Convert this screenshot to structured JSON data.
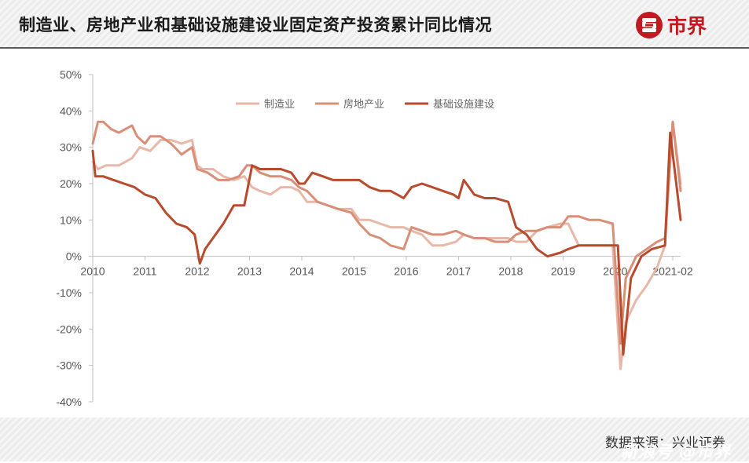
{
  "header": {
    "title": "制造业、房地产业和基础设施建设业固定资产投资累计同比情况",
    "brand_name": "市界"
  },
  "footer": {
    "source": "数据来源：兴业证券",
    "watermark": "新浪号 @市界"
  },
  "colors": {
    "manufacturing": "#e9b7a7",
    "real_estate": "#d98e77",
    "infrastructure": "#b84b2d",
    "brand": "#c2181f"
  },
  "chart_data": {
    "type": "line",
    "title": "制造业、房地产业和基础设施建设业固定资产投资累计同比情况",
    "xlabel": "",
    "ylabel": "",
    "ylim": [
      -40,
      50
    ],
    "yticks": [
      50,
      40,
      30,
      20,
      10,
      0,
      -10,
      -20,
      -30,
      -40
    ],
    "ytick_labels": [
      "50%",
      "40%",
      "30%",
      "20%",
      "10%",
      "0%",
      "-10%",
      "-20%",
      "-30%",
      "-40%"
    ],
    "xlim": [
      2010,
      2021.25
    ],
    "xticks": [
      2010,
      2011,
      2012,
      2013,
      2014,
      2015,
      2016,
      2017,
      2018,
      2019,
      2020,
      2021.1
    ],
    "xtick_labels": [
      "2010",
      "2011",
      "2012",
      "2013",
      "2014",
      "2015",
      "2016",
      "2017",
      "2018",
      "2019",
      "2020",
      "2021-02"
    ],
    "grid": false,
    "legend_position": "top",
    "series": [
      {
        "name": "制造业",
        "color": "#e9b7a7",
        "x": [
          2010,
          2010.1,
          2010.25,
          2010.5,
          2010.75,
          2010.9,
          2011.1,
          2011.3,
          2011.5,
          2011.7,
          2011.9,
          2012.0,
          2012.1,
          2012.3,
          2012.5,
          2012.7,
          2012.9,
          2013.05,
          2013.2,
          2013.4,
          2013.6,
          2013.8,
          2013.95,
          2014.1,
          2014.3,
          2014.5,
          2014.7,
          2014.95,
          2015.1,
          2015.3,
          2015.5,
          2015.7,
          2015.95,
          2016.1,
          2016.3,
          2016.5,
          2016.7,
          2016.95,
          2017.1,
          2017.3,
          2017.5,
          2017.7,
          2017.95,
          2018.1,
          2018.3,
          2018.5,
          2018.7,
          2018.95,
          2019.1,
          2019.3,
          2019.5,
          2019.7,
          2019.95,
          2020.1,
          2020.2,
          2020.4,
          2020.6,
          2020.8,
          2020.95,
          2021.1,
          2021.25
        ],
        "values": [
          26,
          24,
          25,
          25,
          27,
          30,
          29,
          32,
          32,
          31,
          32,
          25,
          24,
          24,
          22,
          21,
          22,
          19,
          18,
          17,
          19,
          19,
          18,
          15,
          15,
          14,
          13,
          13,
          10,
          10,
          9,
          8,
          8,
          7,
          6,
          3,
          3,
          4,
          6,
          5,
          5,
          5,
          5,
          4,
          4,
          7,
          8,
          9,
          9,
          3,
          3,
          3,
          3,
          -31,
          -18,
          -12,
          -8,
          -3,
          3,
          37,
          20
        ]
      },
      {
        "name": "房地产业",
        "color": "#d98e77",
        "x": [
          2010,
          2010.1,
          2010.2,
          2010.35,
          2010.5,
          2010.75,
          2010.85,
          2011.0,
          2011.1,
          2011.3,
          2011.5,
          2011.7,
          2011.9,
          2012.0,
          2012.2,
          2012.4,
          2012.6,
          2012.8,
          2012.95,
          2013.05,
          2013.2,
          2013.4,
          2013.6,
          2013.8,
          2013.95,
          2014.1,
          2014.3,
          2014.5,
          2014.7,
          2014.95,
          2015.1,
          2015.3,
          2015.5,
          2015.7,
          2015.95,
          2016.1,
          2016.3,
          2016.5,
          2016.7,
          2016.95,
          2017.1,
          2017.3,
          2017.5,
          2017.7,
          2017.95,
          2018.1,
          2018.3,
          2018.5,
          2018.7,
          2018.95,
          2019.1,
          2019.3,
          2019.5,
          2019.7,
          2019.95,
          2020.1,
          2020.2,
          2020.4,
          2020.6,
          2020.8,
          2020.95,
          2021.1,
          2021.25
        ],
        "values": [
          31,
          37,
          37,
          35,
          34,
          36,
          33,
          31,
          33,
          33,
          31,
          28,
          30,
          24,
          23,
          21,
          21,
          22,
          25,
          25,
          23,
          22,
          22,
          21,
          19,
          18,
          15,
          14,
          13,
          12,
          9,
          6,
          5,
          3,
          2,
          8,
          7,
          6,
          6,
          7,
          6,
          5,
          5,
          4,
          4,
          6,
          7,
          7,
          8,
          8,
          11,
          11,
          10,
          10,
          9,
          -24,
          -6,
          0,
          2,
          4,
          5,
          37,
          18
        ]
      },
      {
        "name": "基础设施建设",
        "color": "#b84b2d",
        "x": [
          2010,
          2010.05,
          2010.2,
          2010.4,
          2010.6,
          2010.8,
          2011.0,
          2011.2,
          2011.4,
          2011.6,
          2011.8,
          2011.95,
          2012.05,
          2012.15,
          2012.3,
          2012.5,
          2012.7,
          2012.9,
          2013.05,
          2013.2,
          2013.4,
          2013.6,
          2013.8,
          2013.95,
          2014.05,
          2014.2,
          2014.4,
          2014.6,
          2014.8,
          2014.95,
          2015.1,
          2015.3,
          2015.5,
          2015.7,
          2015.95,
          2016.1,
          2016.3,
          2016.5,
          2016.7,
          2016.9,
          2017.0,
          2017.1,
          2017.3,
          2017.5,
          2017.7,
          2017.95,
          2018.1,
          2018.3,
          2018.5,
          2018.7,
          2018.95,
          2019.1,
          2019.3,
          2019.5,
          2019.7,
          2019.95,
          2020.05,
          2020.15,
          2020.3,
          2020.5,
          2020.7,
          2020.95,
          2021.05,
          2021.25
        ],
        "values": [
          29,
          22,
          22,
          21,
          20,
          19,
          17,
          16,
          12,
          9,
          8,
          6,
          -2,
          2,
          5,
          9,
          14,
          14,
          25,
          24,
          24,
          24,
          23,
          20,
          20,
          23,
          22,
          21,
          21,
          21,
          21,
          19,
          18,
          18,
          16,
          19,
          20,
          19,
          18,
          17,
          16,
          21,
          17,
          16,
          16,
          15,
          8,
          6,
          2,
          0,
          1,
          2,
          3,
          3,
          3,
          3,
          3,
          -27,
          -6,
          0,
          2,
          3,
          34,
          10
        ]
      }
    ]
  }
}
